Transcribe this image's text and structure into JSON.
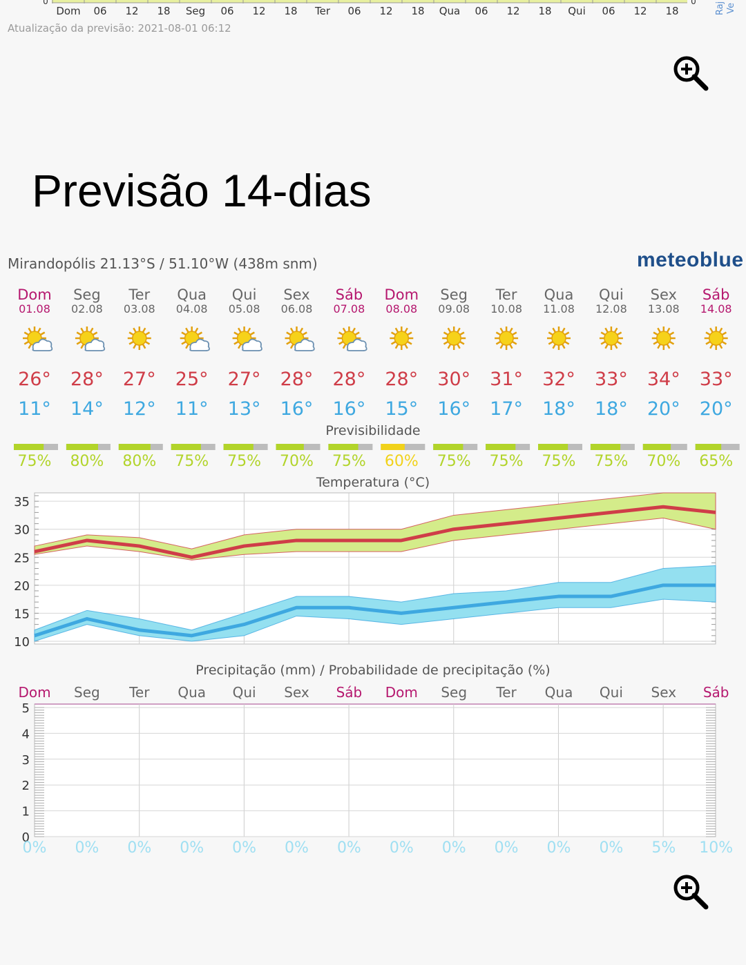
{
  "meta": {
    "update_text": "Atualização da previsão: 2021-08-01 06:12",
    "page_title": "Previsão 14-dias"
  },
  "top_axis": {
    "labels": [
      "Dom",
      "06",
      "12",
      "18",
      "Seg",
      "06",
      "12",
      "18",
      "Ter",
      "06",
      "12",
      "18",
      "Qua",
      "06",
      "12",
      "18",
      "Qui",
      "06",
      "12",
      "18"
    ],
    "right_edge_labels": [
      "Raj",
      "Ve"
    ],
    "zero_label": "0"
  },
  "header": {
    "location": "Mirandopólis  21.13°S / 51.10°W (438m snm)",
    "logo": "meteoblue"
  },
  "icons": {
    "zoom": "zoom-in-icon",
    "sunny": "sun-icon",
    "partly_cloudy": "sun-cloud-icon"
  },
  "colors": {
    "weekend": "#b5176e",
    "weekday": "#666666",
    "tmax": "#cf3d48",
    "tmin": "#3ea8e0",
    "tmax_band": "#d4ec8a",
    "tmin_band": "#94e0f0",
    "pred_good": "#b2d42a",
    "pred_mid": "#f1d21a",
    "pred_rest": "#bcbcbc",
    "precip_prob": "#9fdff2"
  },
  "chart_data": [
    {
      "type": "table",
      "title": "",
      "days": [
        {
          "name": "Dom",
          "date": "01.08",
          "weekend": true,
          "icon": "sun-cloud-icon",
          "tmax": "26°",
          "tmin": "11°"
        },
        {
          "name": "Seg",
          "date": "02.08",
          "weekend": false,
          "icon": "sun-cloud-icon",
          "tmax": "28°",
          "tmin": "14°"
        },
        {
          "name": "Ter",
          "date": "03.08",
          "weekend": false,
          "icon": "sun-icon",
          "tmax": "27°",
          "tmin": "12°"
        },
        {
          "name": "Qua",
          "date": "04.08",
          "weekend": false,
          "icon": "sun-cloud-icon",
          "tmax": "25°",
          "tmin": "11°"
        },
        {
          "name": "Qui",
          "date": "05.08",
          "weekend": false,
          "icon": "sun-cloud-icon",
          "tmax": "27°",
          "tmin": "13°"
        },
        {
          "name": "Sex",
          "date": "06.08",
          "weekend": false,
          "icon": "sun-cloud-icon",
          "tmax": "28°",
          "tmin": "16°"
        },
        {
          "name": "Sáb",
          "date": "07.08",
          "weekend": true,
          "icon": "sun-cloud-icon",
          "tmax": "28°",
          "tmin": "16°"
        },
        {
          "name": "Dom",
          "date": "08.08",
          "weekend": true,
          "icon": "sun-icon",
          "tmax": "28°",
          "tmin": "15°"
        },
        {
          "name": "Seg",
          "date": "09.08",
          "weekend": false,
          "icon": "sun-icon",
          "tmax": "30°",
          "tmin": "16°"
        },
        {
          "name": "Ter",
          "date": "10.08",
          "weekend": false,
          "icon": "sun-icon",
          "tmax": "31°",
          "tmin": "17°"
        },
        {
          "name": "Qua",
          "date": "11.08",
          "weekend": false,
          "icon": "sun-icon",
          "tmax": "32°",
          "tmin": "18°"
        },
        {
          "name": "Qui",
          "date": "12.08",
          "weekend": false,
          "icon": "sun-icon",
          "tmax": "33°",
          "tmin": "18°"
        },
        {
          "name": "Sex",
          "date": "13.08",
          "weekend": false,
          "icon": "sun-icon",
          "tmax": "34°",
          "tmin": "20°"
        },
        {
          "name": "Sáb",
          "date": "14.08",
          "weekend": true,
          "icon": "sun-icon",
          "tmax": "33°",
          "tmin": "20°"
        }
      ]
    },
    {
      "type": "bar",
      "title": "Previsibilidade",
      "categories": [
        "01.08",
        "02.08",
        "03.08",
        "04.08",
        "05.08",
        "06.08",
        "07.08",
        "08.08",
        "09.08",
        "10.08",
        "11.08",
        "12.08",
        "13.08",
        "14.08"
      ],
      "values": [
        75,
        80,
        80,
        75,
        75,
        70,
        75,
        60,
        75,
        75,
        75,
        75,
        70,
        65
      ],
      "labels": [
        "75%",
        "80%",
        "80%",
        "75%",
        "75%",
        "70%",
        "75%",
        "60%",
        "75%",
        "75%",
        "75%",
        "75%",
        "70%",
        "65%"
      ]
    },
    {
      "type": "line",
      "title": "Temperatura (°C)",
      "x": [
        "01.08",
        "02.08",
        "03.08",
        "04.08",
        "05.08",
        "06.08",
        "07.08",
        "08.08",
        "09.08",
        "10.08",
        "11.08",
        "12.08",
        "13.08",
        "14.08"
      ],
      "ylim": [
        9.5,
        36.5
      ],
      "yticks": [
        10,
        15,
        20,
        25,
        30,
        35
      ],
      "series": [
        {
          "key": "tmax",
          "values": [
            26,
            28,
            27,
            25,
            27,
            28,
            28,
            28,
            30,
            31,
            32,
            33,
            34,
            33
          ],
          "band_low": [
            25.5,
            27,
            26,
            24.5,
            25.5,
            26,
            26,
            26,
            28,
            29,
            30,
            31,
            32,
            30
          ],
          "band_high": [
            27,
            29,
            28.5,
            26.5,
            29,
            30,
            30,
            30,
            32.5,
            33.5,
            34.5,
            35.5,
            36.5,
            36.5
          ]
        },
        {
          "key": "tmin",
          "values": [
            11,
            14,
            12,
            11,
            13,
            16,
            16,
            15,
            16,
            17,
            18,
            18,
            20,
            20
          ],
          "band_low": [
            10,
            13,
            11,
            10,
            11,
            14.5,
            14,
            13,
            14,
            15,
            16,
            16,
            17.5,
            17
          ],
          "band_high": [
            12,
            15.5,
            14,
            12,
            15,
            18,
            18,
            17,
            18.5,
            19,
            20.5,
            20.5,
            23,
            23.5
          ]
        }
      ]
    },
    {
      "type": "bar",
      "title": "Precipitação (mm) / Probabilidade de precipitação (%)",
      "categories": [
        "Dom",
        "Seg",
        "Ter",
        "Qua",
        "Qui",
        "Sex",
        "Sáb",
        "Dom",
        "Seg",
        "Ter",
        "Qua",
        "Qui",
        "Sex",
        "Sáb"
      ],
      "weekend": [
        true,
        false,
        false,
        false,
        false,
        false,
        true,
        true,
        false,
        false,
        false,
        false,
        false,
        true
      ],
      "values": [
        0,
        0,
        0,
        0,
        0,
        0,
        0,
        0,
        0,
        0,
        0,
        0,
        0,
        0
      ],
      "ylim": [
        0,
        5
      ],
      "yticks": [
        0,
        1,
        2,
        3,
        4,
        5
      ],
      "probability_labels": [
        "0%",
        "0%",
        "0%",
        "0%",
        "0%",
        "0%",
        "0%",
        "0%",
        "0%",
        "0%",
        "0%",
        "0%",
        "5%",
        "10%"
      ]
    }
  ]
}
